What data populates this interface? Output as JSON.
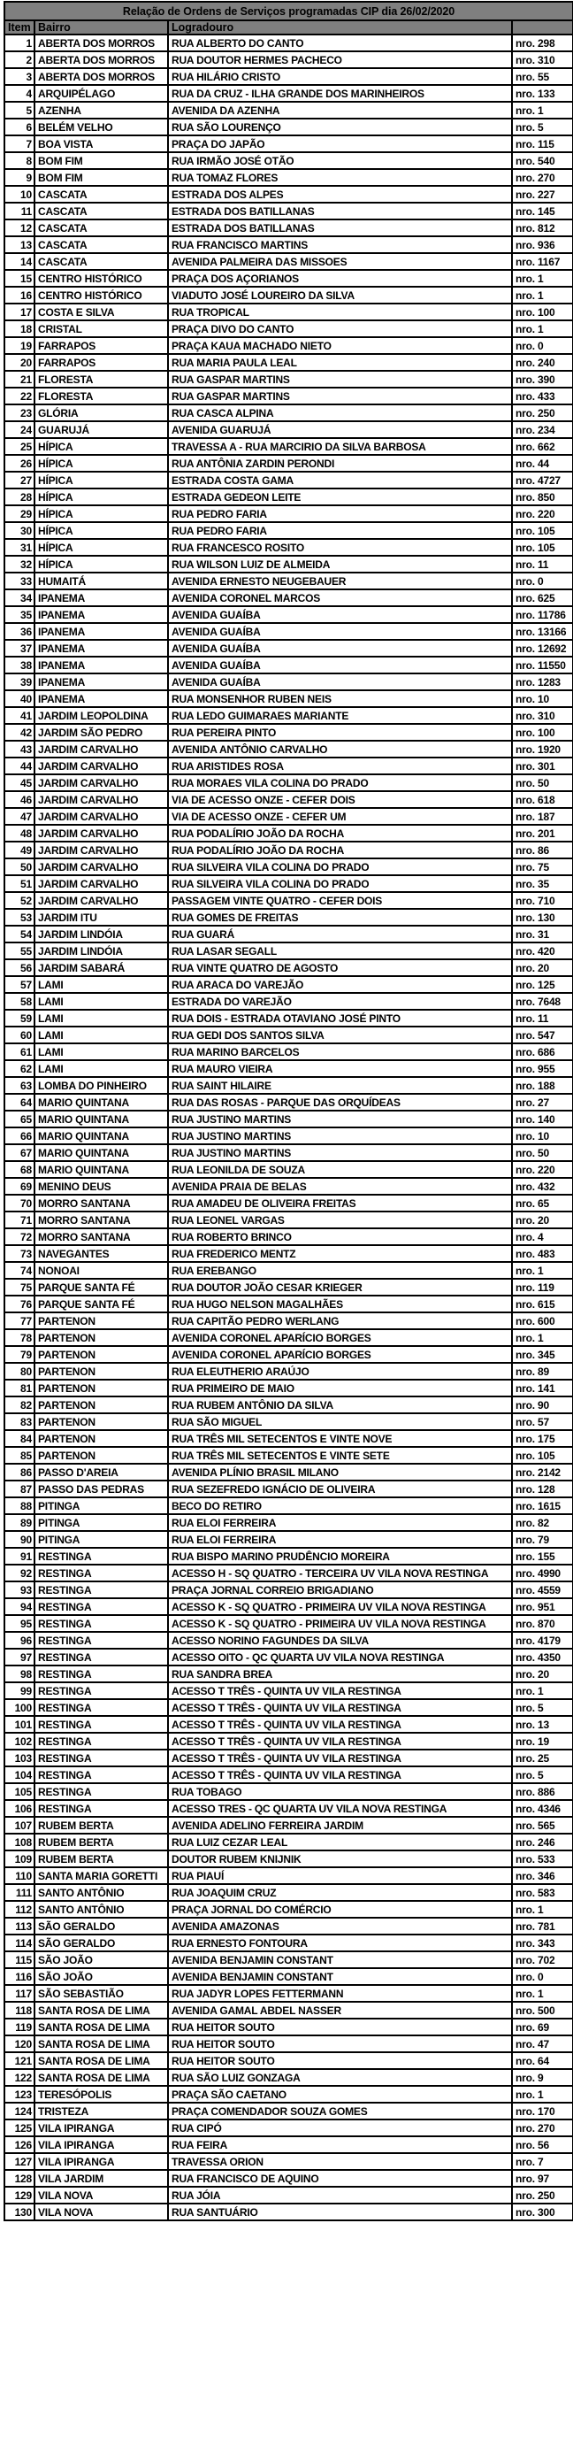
{
  "table": {
    "title": "Relação de Ordens de Serviços programadas CIP dia 26/02/2020",
    "columns": [
      "Item",
      "Bairro",
      "Logradouro",
      ""
    ],
    "rows": [
      [
        "1",
        "ABERTA DOS MORROS",
        "RUA ALBERTO DO CANTO",
        "nro. 298"
      ],
      [
        "2",
        "ABERTA DOS MORROS",
        "RUA DOUTOR HERMES PACHECO",
        "nro. 310"
      ],
      [
        "3",
        "ABERTA DOS MORROS",
        "RUA HILÁRIO CRISTO",
        "nro. 55"
      ],
      [
        "4",
        "ARQUIPÉLAGO",
        "RUA DA CRUZ - ILHA GRANDE DOS MARINHEIROS",
        "nro. 133"
      ],
      [
        "5",
        "AZENHA",
        "AVENIDA DA AZENHA",
        "nro. 1"
      ],
      [
        "6",
        "BELÉM VELHO",
        "RUA SÃO LOURENÇO",
        "nro. 5"
      ],
      [
        "7",
        "BOA VISTA",
        "PRAÇA DO JAPÃO",
        "nro. 115"
      ],
      [
        "8",
        "BOM FIM",
        "RUA IRMÃO JOSÉ OTÃO",
        "nro. 540"
      ],
      [
        "9",
        "BOM FIM",
        "RUA TOMAZ FLORES",
        "nro. 270"
      ],
      [
        "10",
        "CASCATA",
        "ESTRADA DOS ALPES",
        "nro. 227"
      ],
      [
        "11",
        "CASCATA",
        "ESTRADA DOS BATILLANAS",
        "nro. 145"
      ],
      [
        "12",
        "CASCATA",
        "ESTRADA DOS BATILLANAS",
        "nro. 812"
      ],
      [
        "13",
        "CASCATA",
        "RUA FRANCISCO MARTINS",
        "nro. 936"
      ],
      [
        "14",
        "CASCATA",
        "AVENIDA PALMEIRA DAS MISSOES",
        "nro. 1167"
      ],
      [
        "15",
        "CENTRO HISTÓRICO",
        "PRAÇA DOS AÇORIANOS",
        "nro. 1"
      ],
      [
        "16",
        "CENTRO HISTÓRICO",
        "VIADUTO JOSÉ LOUREIRO DA SILVA",
        "nro. 1"
      ],
      [
        "17",
        "COSTA E SILVA",
        "RUA TROPICAL",
        "nro. 100"
      ],
      [
        "18",
        "CRISTAL",
        "PRAÇA DIVO DO CANTO",
        "nro. 1"
      ],
      [
        "19",
        "FARRAPOS",
        "PRAÇA KAUA MACHADO NIETO",
        "nro. 0"
      ],
      [
        "20",
        "FARRAPOS",
        "RUA MARIA PAULA LEAL",
        "nro. 240"
      ],
      [
        "21",
        "FLORESTA",
        "RUA GASPAR MARTINS",
        "nro. 390"
      ],
      [
        "22",
        "FLORESTA",
        "RUA GASPAR MARTINS",
        "nro. 433"
      ],
      [
        "23",
        "GLÓRIA",
        "RUA CASCA ALPINA",
        "nro. 250"
      ],
      [
        "24",
        "GUARUJÁ",
        "AVENIDA GUARUJÁ",
        "nro. 234"
      ],
      [
        "25",
        "HÍPICA",
        "TRAVESSA A - RUA MARCIRIO DA SILVA BARBOSA",
        "nro. 662"
      ],
      [
        "26",
        "HÍPICA",
        "RUA ANTÔNIA ZARDIN PERONDI",
        "nro. 44"
      ],
      [
        "27",
        "HÍPICA",
        "ESTRADA COSTA GAMA",
        "nro. 4727"
      ],
      [
        "28",
        "HÍPICA",
        "ESTRADA GEDEON LEITE",
        "nro. 850"
      ],
      [
        "29",
        "HÍPICA",
        "RUA PEDRO FARIA",
        "nro. 220"
      ],
      [
        "30",
        "HÍPICA",
        "RUA PEDRO FARIA",
        "nro. 105"
      ],
      [
        "31",
        "HÍPICA",
        "RUA FRANCESCO ROSITO",
        "nro. 105"
      ],
      [
        "32",
        "HÍPICA",
        "RUA WILSON LUIZ DE ALMEIDA",
        "nro. 11"
      ],
      [
        "33",
        "HUMAITÁ",
        "AVENIDA ERNESTO NEUGEBAUER",
        "nro. 0"
      ],
      [
        "34",
        "IPANEMA",
        "AVENIDA CORONEL MARCOS",
        "nro. 625"
      ],
      [
        "35",
        "IPANEMA",
        "AVENIDA GUAÍBA",
        "nro. 11786"
      ],
      [
        "36",
        "IPANEMA",
        "AVENIDA GUAÍBA",
        "nro. 13166"
      ],
      [
        "37",
        "IPANEMA",
        "AVENIDA GUAÍBA",
        "nro. 12692"
      ],
      [
        "38",
        "IPANEMA",
        "AVENIDA GUAÍBA",
        "nro. 11550"
      ],
      [
        "39",
        "IPANEMA",
        "AVENIDA GUAÍBA",
        "nro. 1283"
      ],
      [
        "40",
        "IPANEMA",
        "RUA MONSENHOR RUBEN NEIS",
        "nro. 10"
      ],
      [
        "41",
        "JARDIM LEOPOLDINA",
        "RUA LEDO GUIMARAES MARIANTE",
        "nro. 310"
      ],
      [
        "42",
        "JARDIM SÃO PEDRO",
        "RUA PEREIRA PINTO",
        "nro. 100"
      ],
      [
        "43",
        "JARDIM CARVALHO",
        "AVENIDA ANTÔNIO CARVALHO",
        "nro. 1920"
      ],
      [
        "44",
        "JARDIM CARVALHO",
        "RUA ARISTIDES ROSA",
        "nro. 301"
      ],
      [
        "45",
        "JARDIM CARVALHO",
        "RUA MORAES VILA COLINA DO PRADO",
        "nro. 50"
      ],
      [
        "46",
        "JARDIM CARVALHO",
        "VIA DE ACESSO ONZE - CEFER DOIS",
        "nro. 618"
      ],
      [
        "47",
        "JARDIM CARVALHO",
        "VIA DE ACESSO ONZE - CEFER UM",
        "nro. 187"
      ],
      [
        "48",
        "JARDIM CARVALHO",
        "RUA PODALÍRIO JOÃO DA ROCHA",
        "nro. 201"
      ],
      [
        "49",
        "JARDIM CARVALHO",
        "RUA PODALÍRIO JOÃO DA ROCHA",
        "nro. 86"
      ],
      [
        "50",
        "JARDIM CARVALHO",
        "RUA SILVEIRA VILA COLINA DO PRADO",
        "nro. 75"
      ],
      [
        "51",
        "JARDIM CARVALHO",
        "RUA SILVEIRA VILA COLINA DO PRADO",
        "nro. 35"
      ],
      [
        "52",
        "JARDIM CARVALHO",
        "PASSAGEM VINTE QUATRO - CEFER DOIS",
        "nro. 710"
      ],
      [
        "53",
        "JARDIM ITU",
        "RUA GOMES DE FREITAS",
        "nro. 130"
      ],
      [
        "54",
        "JARDIM LINDÓIA",
        "RUA GUARÁ",
        "nro. 31"
      ],
      [
        "55",
        "JARDIM LINDÓIA",
        "RUA LASAR SEGALL",
        "nro. 420"
      ],
      [
        "56",
        "JARDIM SABARÁ",
        "RUA VINTE QUATRO DE AGOSTO",
        "nro. 20"
      ],
      [
        "57",
        "LAMI",
        "RUA ARACA DO VAREJÃO",
        "nro. 125"
      ],
      [
        "58",
        "LAMI",
        "ESTRADA DO VAREJÃO",
        "nro. 7648"
      ],
      [
        "59",
        "LAMI",
        "RUA DOIS - ESTRADA OTAVIANO JOSÉ PINTO",
        "nro. 11"
      ],
      [
        "60",
        "LAMI",
        "RUA GEDI DOS SANTOS SILVA",
        "nro. 547"
      ],
      [
        "61",
        "LAMI",
        "RUA MARINO BARCELOS",
        "nro. 686"
      ],
      [
        "62",
        "LAMI",
        "RUA MAURO VIEIRA",
        "nro. 955"
      ],
      [
        "63",
        "LOMBA DO PINHEIRO",
        "RUA SAINT HILAIRE",
        "nro. 188"
      ],
      [
        "64",
        "MARIO QUINTANA",
        "RUA DAS ROSAS - PARQUE DAS ORQUÍDEAS",
        "nro. 27"
      ],
      [
        "65",
        "MARIO QUINTANA",
        "RUA JUSTINO MARTINS",
        "nro. 140"
      ],
      [
        "66",
        "MARIO QUINTANA",
        "RUA JUSTINO MARTINS",
        "nro. 10"
      ],
      [
        "67",
        "MARIO QUINTANA",
        "RUA JUSTINO MARTINS",
        "nro. 50"
      ],
      [
        "68",
        "MARIO QUINTANA",
        "RUA LEONILDA DE SOUZA",
        "nro. 220"
      ],
      [
        "69",
        "MENINO DEUS",
        "AVENIDA PRAIA DE BELAS",
        "nro. 432"
      ],
      [
        "70",
        "MORRO SANTANA",
        "RUA AMADEU DE OLIVEIRA FREITAS",
        "nro. 65"
      ],
      [
        "71",
        "MORRO SANTANA",
        "RUA LEONEL VARGAS",
        "nro. 20"
      ],
      [
        "72",
        "MORRO SANTANA",
        "RUA ROBERTO BRINCO",
        "nro. 4"
      ],
      [
        "73",
        "NAVEGANTES",
        "RUA FREDERICO MENTZ",
        "nro. 483"
      ],
      [
        "74",
        "NONOAI",
        "RUA EREBANGO",
        "nro. 1"
      ],
      [
        "75",
        "PARQUE SANTA FÉ",
        "RUA DOUTOR JOÃO CESAR KRIEGER",
        "nro. 119"
      ],
      [
        "76",
        "PARQUE SANTA FÉ",
        "RUA HUGO NELSON MAGALHÃES",
        "nro. 615"
      ],
      [
        "77",
        "PARTENON",
        "RUA CAPITÃO PEDRO WERLANG",
        "nro. 600"
      ],
      [
        "78",
        "PARTENON",
        "AVENIDA CORONEL APARÍCIO BORGES",
        "nro. 1"
      ],
      [
        "79",
        "PARTENON",
        "AVENIDA CORONEL APARÍCIO BORGES",
        "nro. 345"
      ],
      [
        "80",
        "PARTENON",
        "RUA ELEUTHERIO ARAÚJO",
        "nro. 89"
      ],
      [
        "81",
        "PARTENON",
        "RUA PRIMEIRO DE MAIO",
        "nro. 141"
      ],
      [
        "82",
        "PARTENON",
        "RUA RUBEM ANTÔNIO DA SILVA",
        "nro. 90"
      ],
      [
        "83",
        "PARTENON",
        "RUA SÃO MIGUEL",
        "nro. 57"
      ],
      [
        "84",
        "PARTENON",
        "RUA TRÊS MIL SETECENTOS E VINTE NOVE",
        "nro. 175"
      ],
      [
        "85",
        "PARTENON",
        "RUA TRÊS MIL SETECENTOS E VINTE SETE",
        "nro. 105"
      ],
      [
        "86",
        "PASSO D'AREIA",
        "AVENIDA PLÍNIO BRASIL MILANO",
        "nro. 2142"
      ],
      [
        "87",
        "PASSO DAS PEDRAS",
        "RUA SEZEFREDO IGNÁCIO DE OLIVEIRA",
        "nro. 128"
      ],
      [
        "88",
        "PITINGA",
        "BECO DO RETIRO",
        "nro. 1615"
      ],
      [
        "89",
        "PITINGA",
        "RUA ELOI FERREIRA",
        "nro. 82"
      ],
      [
        "90",
        "PITINGA",
        "RUA ELOI FERREIRA",
        "nro. 79"
      ],
      [
        "91",
        "RESTINGA",
        "RUA BISPO MARINO PRUDÊNCIO MOREIRA",
        "nro. 155"
      ],
      [
        "92",
        "RESTINGA",
        "ACESSO H - SQ QUATRO - TERCEIRA UV VILA NOVA RESTINGA",
        "nro. 4990"
      ],
      [
        "93",
        "RESTINGA",
        "PRAÇA JORNAL CORREIO BRIGADIANO",
        "nro. 4559"
      ],
      [
        "94",
        "RESTINGA",
        "ACESSO K - SQ QUATRO - PRIMEIRA UV VILA NOVA RESTINGA",
        "nro. 951"
      ],
      [
        "95",
        "RESTINGA",
        "ACESSO K - SQ QUATRO - PRIMEIRA UV VILA NOVA RESTINGA",
        "nro. 870"
      ],
      [
        "96",
        "RESTINGA",
        "ACESSO NORINO FAGUNDES DA SILVA",
        "nro. 4179"
      ],
      [
        "97",
        "RESTINGA",
        "ACESSO OITO - QC QUARTA UV VILA NOVA RESTINGA",
        "nro. 4350"
      ],
      [
        "98",
        "RESTINGA",
        "RUA SANDRA BREA",
        "nro. 20"
      ],
      [
        "99",
        "RESTINGA",
        "ACESSO T TRÊS - QUINTA UV VILA RESTINGA",
        "nro. 1"
      ],
      [
        "100",
        "RESTINGA",
        "ACESSO T TRÊS - QUINTA UV VILA RESTINGA",
        "nro. 5"
      ],
      [
        "101",
        "RESTINGA",
        "ACESSO T TRÊS - QUINTA UV VILA RESTINGA",
        "nro. 13"
      ],
      [
        "102",
        "RESTINGA",
        "ACESSO T TRÊS - QUINTA UV VILA RESTINGA",
        "nro. 19"
      ],
      [
        "103",
        "RESTINGA",
        "ACESSO T TRÊS - QUINTA UV VILA RESTINGA",
        "nro. 25"
      ],
      [
        "104",
        "RESTINGA",
        "ACESSO T TRÊS - QUINTA UV VILA RESTINGA",
        "nro. 5"
      ],
      [
        "105",
        "RESTINGA",
        "RUA TOBAGO",
        "nro. 886"
      ],
      [
        "106",
        "RESTINGA",
        "ACESSO TRES - QC QUARTA UV VILA NOVA RESTINGA",
        "nro. 4346"
      ],
      [
        "107",
        "RUBEM BERTA",
        "AVENIDA ADELINO FERREIRA JARDIM",
        "nro. 565"
      ],
      [
        "108",
        "RUBEM BERTA",
        "RUA LUIZ CEZAR LEAL",
        "nro. 246"
      ],
      [
        "109",
        "RUBEM BERTA",
        "DOUTOR RUBEM KNIJNIK",
        "nro. 533"
      ],
      [
        "110",
        "SANTA MARIA GORETTI",
        "RUA PIAUÍ",
        "nro. 346"
      ],
      [
        "111",
        "SANTO ANTÔNIO",
        "RUA JOAQUIM CRUZ",
        "nro. 583"
      ],
      [
        "112",
        "SANTO ANTÔNIO",
        "PRAÇA JORNAL DO COMÉRCIO",
        "nro. 1"
      ],
      [
        "113",
        "SÃO GERALDO",
        "AVENIDA AMAZONAS",
        "nro. 781"
      ],
      [
        "114",
        "SÃO GERALDO",
        "RUA ERNESTO FONTOURA",
        "nro. 343"
      ],
      [
        "115",
        "SÃO JOÃO",
        "AVENIDA BENJAMIN CONSTANT",
        "nro. 702"
      ],
      [
        "116",
        "SÃO JOÃO",
        "AVENIDA BENJAMIN CONSTANT",
        "nro. 0"
      ],
      [
        "117",
        "SÃO SEBASTIÃO",
        "RUA JADYR LOPES FETTERMANN",
        "nro. 1"
      ],
      [
        "118",
        "SANTA ROSA DE LIMA",
        "AVENIDA GAMAL ABDEL NASSER",
        "nro. 500"
      ],
      [
        "119",
        "SANTA ROSA DE LIMA",
        "RUA HEITOR SOUTO",
        "nro. 69"
      ],
      [
        "120",
        "SANTA ROSA DE LIMA",
        "RUA HEITOR SOUTO",
        "nro. 47"
      ],
      [
        "121",
        "SANTA ROSA DE LIMA",
        "RUA HEITOR SOUTO",
        "nro. 64"
      ],
      [
        "122",
        "SANTA ROSA DE LIMA",
        "RUA SÃO LUIZ GONZAGA",
        "nro. 9"
      ],
      [
        "123",
        "TERESÓPOLIS",
        "PRAÇA SÃO CAETANO",
        "nro. 1"
      ],
      [
        "124",
        "TRISTEZA",
        "PRAÇA COMENDADOR SOUZA GOMES",
        "nro. 170"
      ],
      [
        "125",
        "VILA IPIRANGA",
        "RUA CIPÓ",
        "nro. 270"
      ],
      [
        "126",
        "VILA IPIRANGA",
        "RUA FEIRA",
        "nro. 56"
      ],
      [
        "127",
        "VILA IPIRANGA",
        "TRAVESSA ORION",
        "nro. 7"
      ],
      [
        "128",
        "VILA JARDIM",
        "RUA FRANCISCO DE AQUINO",
        "nro. 97"
      ],
      [
        "129",
        "VILA NOVA",
        "RUA JÓIA",
        "nro. 250"
      ],
      [
        "130",
        "VILA NOVA",
        "RUA SANTUÁRIO",
        "nro. 300"
      ]
    ]
  },
  "colors": {
    "header_bg": "#7F7F7F",
    "border": "#000000",
    "row_bg": "#FFFFFF",
    "text": "#000000"
  }
}
